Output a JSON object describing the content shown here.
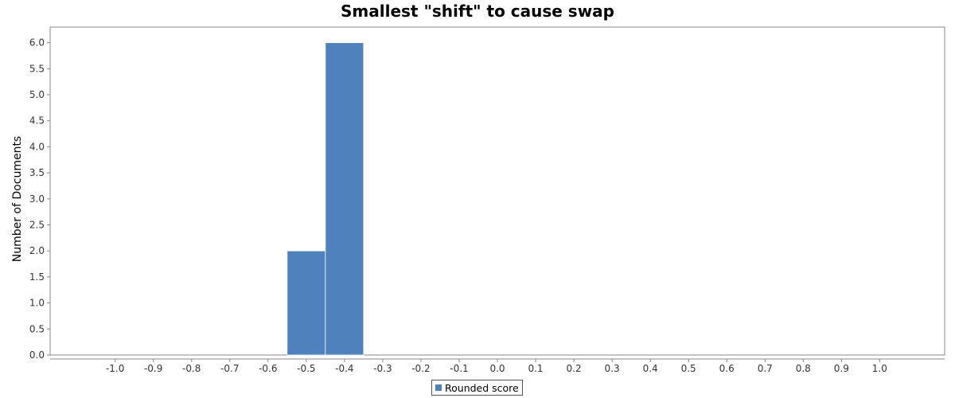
{
  "chart_data": {
    "type": "bar",
    "title": "Smallest \"shift\" to cause swap",
    "xlabel": "",
    "ylabel": "Number of Documents",
    "bin_width": 0.1,
    "bars": [
      {
        "x": -0.5,
        "value": 2
      },
      {
        "x": -0.4,
        "value": 6
      }
    ],
    "xlim": [
      -1.17,
      1.17
    ],
    "ylim": [
      0,
      6.3
    ],
    "x_ticks": [
      "-1.0",
      "-0.9",
      "-0.8",
      "-0.7",
      "-0.6",
      "-0.5",
      "-0.4",
      "-0.3",
      "-0.2",
      "-0.1",
      "0.0",
      "0.1",
      "0.2",
      "0.3",
      "0.4",
      "0.5",
      "0.6",
      "0.7",
      "0.8",
      "0.9",
      "1.0"
    ],
    "y_ticks": [
      "0.0",
      "0.5",
      "1.0",
      "1.5",
      "2.0",
      "2.5",
      "3.0",
      "3.5",
      "4.0",
      "4.5",
      "5.0",
      "5.5",
      "6.0"
    ],
    "grid": false,
    "series": [
      {
        "name": "Rounded score",
        "color": "#4f81bd"
      }
    ],
    "legend_position": "bottom"
  }
}
